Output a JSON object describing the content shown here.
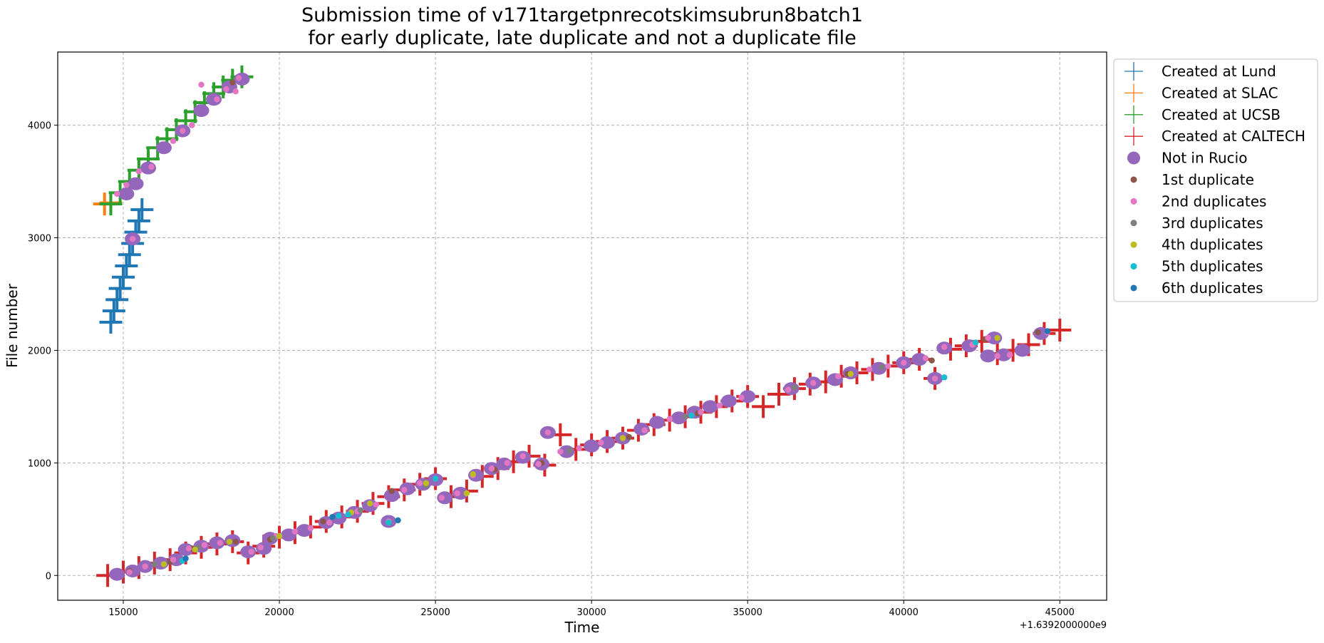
{
  "chart_data": {
    "type": "scatter",
    "title_line1": "Submission time of v171targetpnrecotskimsubrun8batch1",
    "title_line2": "for early duplicate, late duplicate and not a duplicate file",
    "xlabel": "Time",
    "ylabel": "File number",
    "x_offset_label": "+1.6392000000e9",
    "x_offset": 1639200000,
    "xlim": [
      12900,
      46500
    ],
    "ylim": [
      -220,
      4650
    ],
    "xticks": [
      15000,
      20000,
      25000,
      30000,
      35000,
      40000,
      45000
    ],
    "yticks": [
      0,
      1000,
      2000,
      3000,
      4000
    ],
    "grid": true,
    "legend_position": "outside-right-top",
    "series": [
      {
        "name": "Created at Lund",
        "marker": "plus",
        "color": "#1f77b4",
        "points": [
          [
            14600,
            2250
          ],
          [
            14700,
            2350
          ],
          [
            14800,
            2450
          ],
          [
            14900,
            2550
          ],
          [
            15000,
            2650
          ],
          [
            15100,
            2750
          ],
          [
            15200,
            2850
          ],
          [
            15300,
            2950
          ],
          [
            15400,
            3050
          ],
          [
            15500,
            3150
          ],
          [
            15600,
            3250
          ]
        ]
      },
      {
        "name": "Created at SLAC",
        "marker": "plus",
        "color": "#ff7f0e",
        "points": [
          [
            14400,
            3300
          ],
          [
            14600,
            3310
          ]
        ]
      },
      {
        "name": "Created at UCSB",
        "marker": "plus",
        "color": "#2ca02c",
        "points": [
          [
            14600,
            3300
          ],
          [
            14900,
            3400
          ],
          [
            15200,
            3500
          ],
          [
            15500,
            3600
          ],
          [
            15800,
            3700
          ],
          [
            16100,
            3800
          ],
          [
            16400,
            3880
          ],
          [
            16700,
            3960
          ],
          [
            17000,
            4040
          ],
          [
            17300,
            4120
          ],
          [
            17600,
            4200
          ],
          [
            17900,
            4280
          ],
          [
            18200,
            4340
          ],
          [
            18500,
            4400
          ],
          [
            18800,
            4430
          ]
        ]
      },
      {
        "name": "Created at CALTECH",
        "marker": "plus",
        "color": "#d62728",
        "points": [
          [
            14500,
            0
          ],
          [
            15000,
            30
          ],
          [
            15500,
            70
          ],
          [
            16000,
            110
          ],
          [
            16500,
            140
          ],
          [
            17000,
            200
          ],
          [
            17500,
            250
          ],
          [
            18000,
            280
          ],
          [
            18500,
            300
          ],
          [
            19000,
            200
          ],
          [
            19500,
            260
          ],
          [
            20000,
            340
          ],
          [
            20500,
            380
          ],
          [
            21000,
            430
          ],
          [
            21500,
            480
          ],
          [
            22000,
            520
          ],
          [
            22500,
            570
          ],
          [
            23000,
            640
          ],
          [
            23500,
            700
          ],
          [
            24000,
            760
          ],
          [
            24500,
            810
          ],
          [
            25000,
            860
          ],
          [
            25500,
            700
          ],
          [
            26000,
            750
          ],
          [
            26500,
            880
          ],
          [
            27000,
            950
          ],
          [
            27500,
            1010
          ],
          [
            28000,
            1060
          ],
          [
            28500,
            980
          ],
          [
            29000,
            1250
          ],
          [
            29500,
            1120
          ],
          [
            30000,
            1160
          ],
          [
            30500,
            1190
          ],
          [
            31000,
            1220
          ],
          [
            31500,
            1290
          ],
          [
            32000,
            1340
          ],
          [
            32500,
            1380
          ],
          [
            33000,
            1410
          ],
          [
            33500,
            1450
          ],
          [
            34000,
            1500
          ],
          [
            34500,
            1550
          ],
          [
            35000,
            1590
          ],
          [
            35500,
            1500
          ],
          [
            36000,
            1610
          ],
          [
            36500,
            1660
          ],
          [
            37000,
            1700
          ],
          [
            37500,
            1720
          ],
          [
            38000,
            1770
          ],
          [
            38500,
            1800
          ],
          [
            39000,
            1830
          ],
          [
            39500,
            1860
          ],
          [
            40000,
            1890
          ],
          [
            40500,
            1920
          ],
          [
            41000,
            1750
          ],
          [
            41500,
            2010
          ],
          [
            42000,
            2040
          ],
          [
            42500,
            2080
          ],
          [
            43000,
            1970
          ],
          [
            43500,
            2000
          ],
          [
            44000,
            2050
          ],
          [
            44500,
            2150
          ],
          [
            45000,
            2180
          ]
        ]
      },
      {
        "name": "Not in Rucio",
        "marker": "circle-large",
        "color": "#9467bd",
        "points": [
          [
            14800,
            10
          ],
          [
            15300,
            40
          ],
          [
            15700,
            80
          ],
          [
            16200,
            110
          ],
          [
            16700,
            140
          ],
          [
            17000,
            230
          ],
          [
            17500,
            260
          ],
          [
            18000,
            290
          ],
          [
            18500,
            310
          ],
          [
            19000,
            210
          ],
          [
            19500,
            240
          ],
          [
            19700,
            330
          ],
          [
            20300,
            360
          ],
          [
            20800,
            400
          ],
          [
            21500,
            470
          ],
          [
            21900,
            510
          ],
          [
            22400,
            560
          ],
          [
            22900,
            620
          ],
          [
            23500,
            480
          ],
          [
            23600,
            710
          ],
          [
            24100,
            770
          ],
          [
            24600,
            810
          ],
          [
            25000,
            850
          ],
          [
            25300,
            690
          ],
          [
            25800,
            730
          ],
          [
            26300,
            890
          ],
          [
            26800,
            950
          ],
          [
            27200,
            990
          ],
          [
            27800,
            1050
          ],
          [
            28400,
            990
          ],
          [
            28600,
            1270
          ],
          [
            29200,
            1100
          ],
          [
            30000,
            1150
          ],
          [
            30500,
            1180
          ],
          [
            31000,
            1220
          ],
          [
            31600,
            1300
          ],
          [
            32100,
            1360
          ],
          [
            32800,
            1400
          ],
          [
            33300,
            1450
          ],
          [
            33800,
            1500
          ],
          [
            34400,
            1550
          ],
          [
            35000,
            1590
          ],
          [
            36400,
            1660
          ],
          [
            37100,
            1710
          ],
          [
            37800,
            1740
          ],
          [
            38300,
            1800
          ],
          [
            39200,
            1840
          ],
          [
            40000,
            1890
          ],
          [
            40500,
            1920
          ],
          [
            41000,
            1750
          ],
          [
            41300,
            2020
          ],
          [
            42100,
            2040
          ],
          [
            42900,
            2110
          ],
          [
            42700,
            1950
          ],
          [
            43200,
            1960
          ],
          [
            43800,
            2000
          ],
          [
            44400,
            2150
          ],
          [
            15100,
            3390
          ],
          [
            15400,
            3480
          ],
          [
            15800,
            3620
          ],
          [
            16300,
            3800
          ],
          [
            16900,
            3950
          ],
          [
            17500,
            4130
          ],
          [
            17900,
            4230
          ],
          [
            18400,
            4340
          ],
          [
            18800,
            4410
          ],
          [
            15300,
            2990
          ]
        ]
      },
      {
        "name": "1st duplicate",
        "marker": "dot",
        "color": "#8c564b",
        "points": [
          [
            15200,
            40
          ],
          [
            16500,
            120
          ],
          [
            17200,
            240
          ],
          [
            18600,
            300
          ],
          [
            19700,
            320
          ],
          [
            21400,
            480
          ],
          [
            23600,
            750
          ],
          [
            26900,
            940
          ],
          [
            28400,
            1000
          ],
          [
            31200,
            1230
          ],
          [
            33400,
            1440
          ],
          [
            38200,
            1790
          ],
          [
            40900,
            1910
          ],
          [
            42600,
            2100
          ],
          [
            44300,
            2160
          ],
          [
            18500,
            4380
          ]
        ]
      },
      {
        "name": "2nd duplicates",
        "marker": "dot",
        "color": "#e377c2",
        "points": [
          [
            15200,
            30
          ],
          [
            15700,
            80
          ],
          [
            16600,
            140
          ],
          [
            17100,
            240
          ],
          [
            17600,
            270
          ],
          [
            18100,
            290
          ],
          [
            19100,
            210
          ],
          [
            19400,
            250
          ],
          [
            19900,
            350
          ],
          [
            20500,
            390
          ],
          [
            21000,
            420
          ],
          [
            21600,
            470
          ],
          [
            22500,
            570
          ],
          [
            23100,
            630
          ],
          [
            23500,
            480
          ],
          [
            24000,
            760
          ],
          [
            24500,
            820
          ],
          [
            25200,
            690
          ],
          [
            25700,
            730
          ],
          [
            26200,
            890
          ],
          [
            26800,
            950
          ],
          [
            27300,
            1000
          ],
          [
            27800,
            1060
          ],
          [
            28300,
            990
          ],
          [
            28600,
            1270
          ],
          [
            29000,
            1100
          ],
          [
            29600,
            1130
          ],
          [
            30300,
            1180
          ],
          [
            31000,
            1220
          ],
          [
            31700,
            1290
          ],
          [
            32500,
            1390
          ],
          [
            33500,
            1450
          ],
          [
            34100,
            1510
          ],
          [
            34800,
            1580
          ],
          [
            36300,
            1650
          ],
          [
            37100,
            1710
          ],
          [
            37900,
            1770
          ],
          [
            38900,
            1830
          ],
          [
            39500,
            1860
          ],
          [
            40000,
            1890
          ],
          [
            40700,
            1930
          ],
          [
            41000,
            1750
          ],
          [
            41300,
            2030
          ],
          [
            42200,
            2050
          ],
          [
            42700,
            2110
          ],
          [
            43000,
            1950
          ],
          [
            43400,
            1960
          ],
          [
            44600,
            2160
          ],
          [
            14800,
            3390
          ],
          [
            15100,
            3470
          ],
          [
            15500,
            3590
          ],
          [
            15900,
            3630
          ],
          [
            16600,
            3860
          ],
          [
            16900,
            3950
          ],
          [
            17200,
            4000
          ],
          [
            17500,
            4360
          ],
          [
            18000,
            4230
          ],
          [
            18300,
            4320
          ],
          [
            18600,
            4300
          ],
          [
            18700,
            4420
          ],
          [
            15300,
            2990
          ]
        ]
      },
      {
        "name": "3rd duplicates",
        "marker": "dot",
        "color": "#7f7f7f",
        "points": [
          [
            16000,
            100
          ],
          [
            17400,
            250
          ],
          [
            19800,
            330
          ],
          [
            22600,
            580
          ],
          [
            24700,
            800
          ],
          [
            29300,
            1110
          ],
          [
            33000,
            1410
          ],
          [
            36500,
            1670
          ],
          [
            39300,
            1850
          ]
        ]
      },
      {
        "name": "4th duplicates",
        "marker": "dot",
        "color": "#bcbd22",
        "points": [
          [
            16300,
            100
          ],
          [
            17300,
            230
          ],
          [
            18400,
            300
          ],
          [
            20000,
            350
          ],
          [
            22300,
            560
          ],
          [
            22900,
            640
          ],
          [
            24700,
            820
          ],
          [
            26200,
            900
          ],
          [
            26000,
            730
          ],
          [
            31000,
            1220
          ],
          [
            38300,
            1790
          ],
          [
            43000,
            2110
          ]
        ]
      },
      {
        "name": "5th duplicates",
        "marker": "dot",
        "color": "#17becf",
        "points": [
          [
            16900,
            130
          ],
          [
            21900,
            530
          ],
          [
            22200,
            540
          ],
          [
            23500,
            470
          ],
          [
            25000,
            860
          ],
          [
            33200,
            1420
          ],
          [
            41300,
            1760
          ],
          [
            42300,
            2070
          ]
        ]
      },
      {
        "name": "6th duplicates",
        "marker": "dot",
        "color": "#1f77b4",
        "points": [
          [
            17000,
            150
          ],
          [
            21700,
            520
          ],
          [
            23800,
            490
          ],
          [
            44600,
            2170
          ]
        ]
      }
    ]
  }
}
